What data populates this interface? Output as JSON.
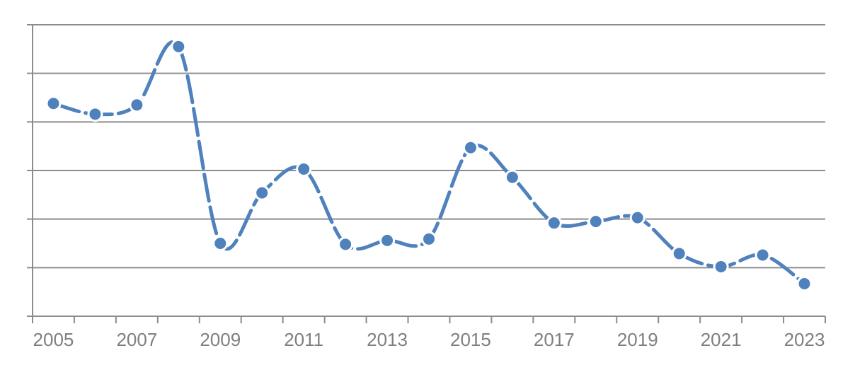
{
  "chart_data": {
    "type": "line",
    "title": "",
    "xlabel": "",
    "ylabel": "",
    "x": [
      2005,
      2006,
      2007,
      2008,
      2009,
      2010,
      2011,
      2012,
      2013,
      2014,
      2015,
      2016,
      2017,
      2018,
      2019,
      2020,
      2021,
      2022,
      2023
    ],
    "x_tick_labels": [
      "2005",
      "2007",
      "2009",
      "2011",
      "2013",
      "2015",
      "2017",
      "2019",
      "2021",
      "2023"
    ],
    "series": [
      {
        "values": [
          4.38,
          4.16,
          4.35,
          5.55,
          1.5,
          2.54,
          3.03,
          1.48,
          1.56,
          1.59,
          3.47,
          2.86,
          1.92,
          1.95,
          2.03,
          1.29,
          1.02,
          1.26,
          0.67
        ]
      }
    ],
    "ylim": [
      0,
      6
    ],
    "y_gridlines": 6,
    "grid": true,
    "line_style": "dashed-smooth",
    "markers": true,
    "colors": {
      "line": "#4f81bd",
      "grid": "#8c8c8c",
      "axis": "#8c8c8c",
      "tick_text": "#7f7f7f"
    }
  }
}
